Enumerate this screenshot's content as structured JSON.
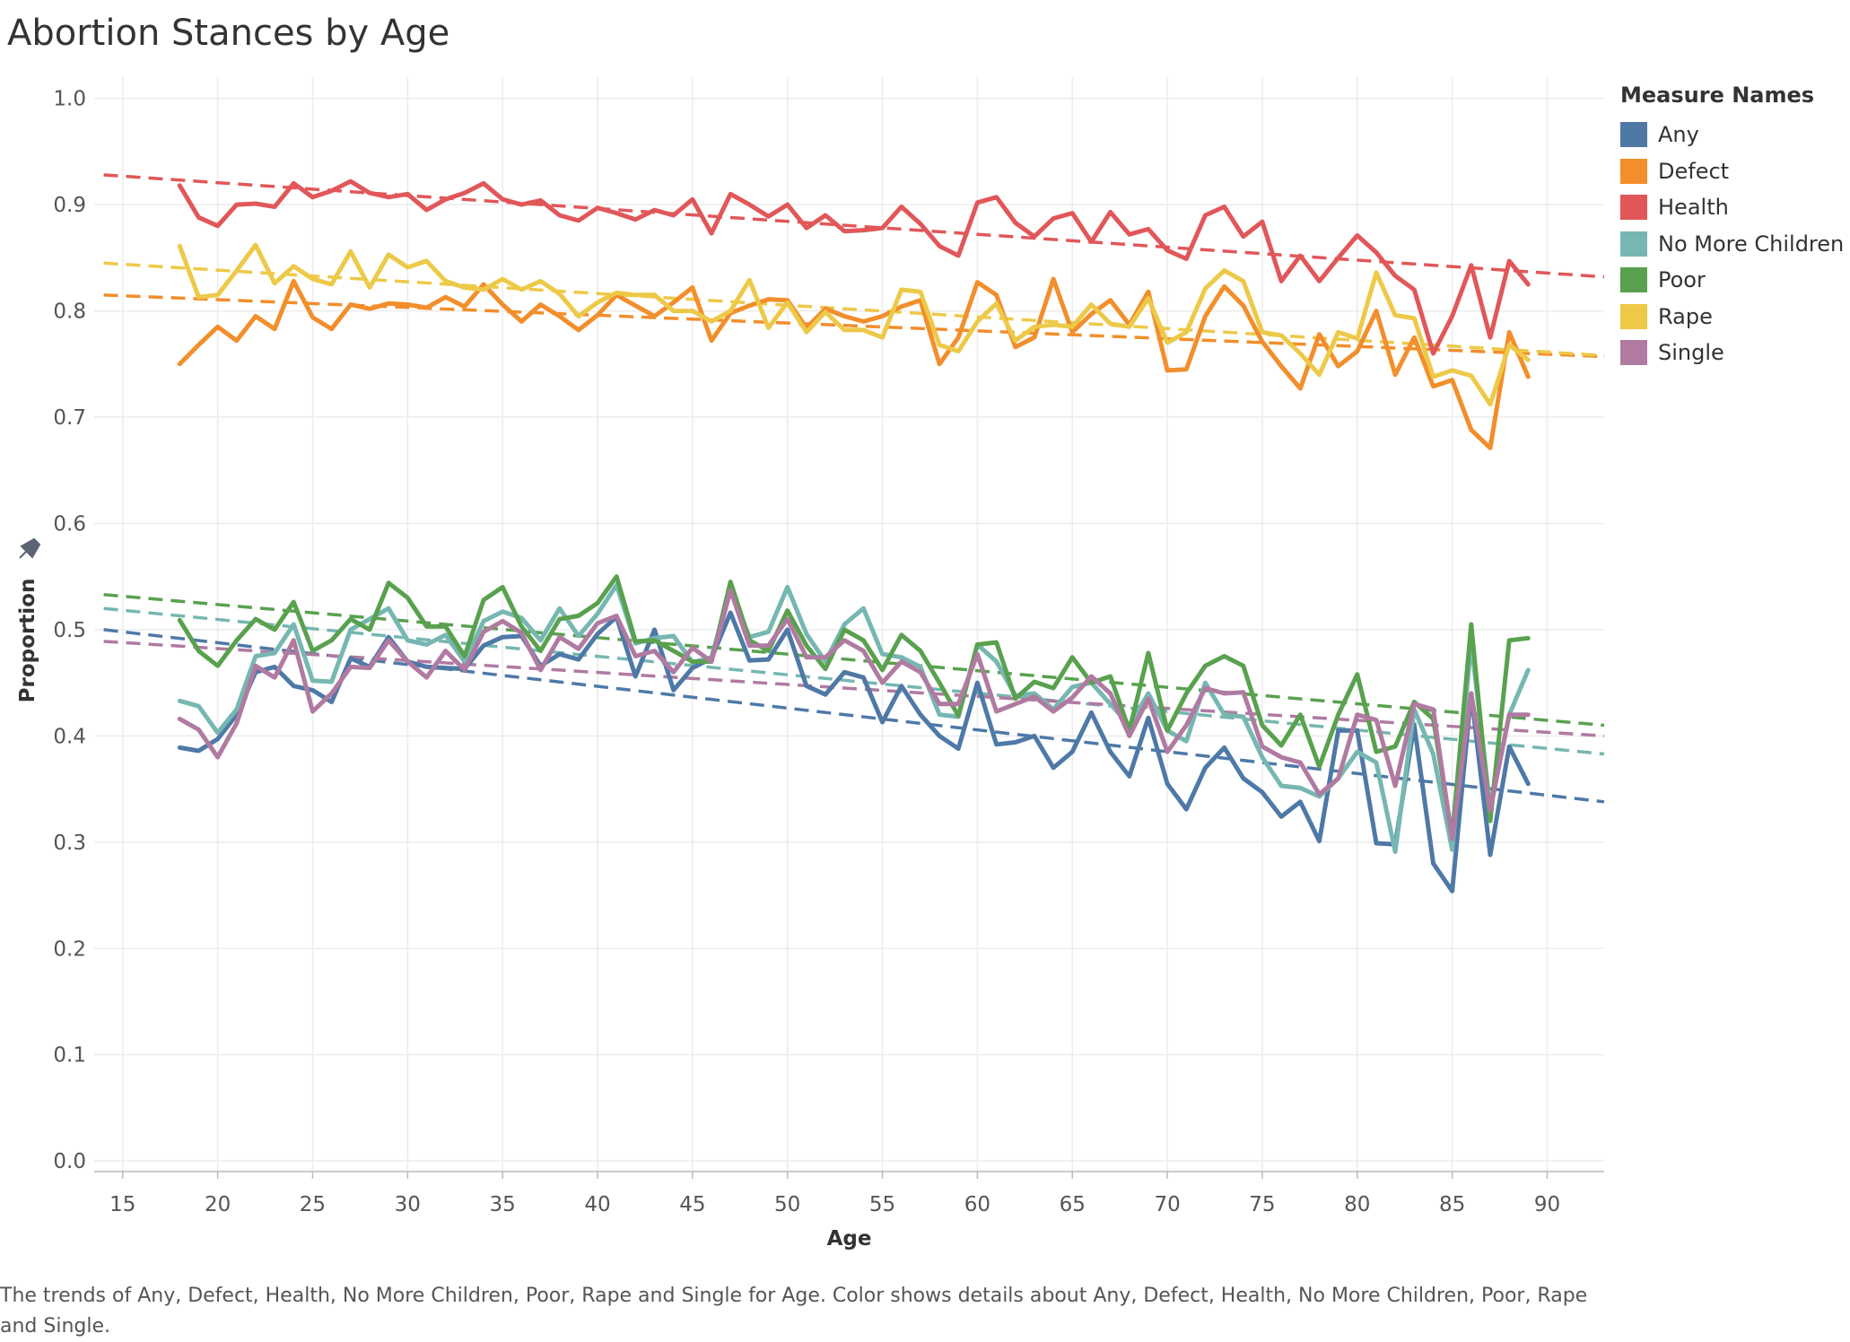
{
  "title": "Abortion Stances by Age",
  "legend_title": "Measure Names",
  "caption": "The trends of Any, Defect, Health, No More Children, Poor, Rape and Single for Age.  Color shows details about Any, Defect, Health, No More Children, Poor, Rape and Single.",
  "chart_data": {
    "type": "line",
    "xlabel": "Age",
    "ylabel": "Proportion",
    "xlim": [
      13.5,
      93
    ],
    "ylim": [
      -0.01,
      1.02
    ],
    "x_ticks": [
      15,
      20,
      25,
      30,
      35,
      40,
      45,
      50,
      55,
      60,
      65,
      70,
      75,
      80,
      85,
      90
    ],
    "y_ticks": [
      0.0,
      0.1,
      0.2,
      0.3,
      0.4,
      0.5,
      0.6,
      0.7,
      0.8,
      0.9,
      1.0
    ],
    "grid": true,
    "legend_position": "right",
    "x": [
      18,
      19,
      20,
      21,
      22,
      23,
      24,
      25,
      26,
      27,
      28,
      29,
      30,
      31,
      32,
      33,
      34,
      35,
      36,
      37,
      38,
      39,
      40,
      41,
      42,
      43,
      44,
      45,
      46,
      47,
      48,
      49,
      50,
      51,
      52,
      53,
      54,
      55,
      56,
      57,
      58,
      59,
      60,
      61,
      62,
      63,
      64,
      65,
      66,
      67,
      68,
      69,
      70,
      71,
      72,
      73,
      74,
      75,
      76,
      77,
      78,
      79,
      80,
      81,
      82,
      83,
      84,
      85,
      86,
      87,
      88,
      89
    ],
    "series": [
      {
        "name": "Any",
        "color": "#4e79a7",
        "trend": [
          [
            14,
            0.5
          ],
          [
            93,
            0.338
          ]
        ],
        "values": [
          0.389,
          0.386,
          0.397,
          0.42,
          0.46,
          0.465,
          0.447,
          0.443,
          0.432,
          0.473,
          0.465,
          0.493,
          0.47,
          0.465,
          0.464,
          0.463,
          0.485,
          0.493,
          0.494,
          0.466,
          0.477,
          0.472,
          0.496,
          0.512,
          0.456,
          0.5,
          0.443,
          0.464,
          0.473,
          0.516,
          0.471,
          0.472,
          0.5,
          0.447,
          0.439,
          0.46,
          0.455,
          0.413,
          0.447,
          0.42,
          0.4,
          0.388,
          0.45,
          0.392,
          0.394,
          0.4,
          0.37,
          0.385,
          0.422,
          0.385,
          0.362,
          0.417,
          0.355,
          0.331,
          0.37,
          0.389,
          0.36,
          0.347,
          0.324,
          0.338,
          0.301,
          0.405,
          0.405,
          0.299,
          0.298,
          0.41,
          0.28,
          0.254,
          0.44,
          0.288,
          0.39,
          0.355
        ]
      },
      {
        "name": "Defect",
        "color": "#f28e2b",
        "trend": [
          [
            14,
            0.815
          ],
          [
            93,
            0.757
          ]
        ],
        "values": [
          0.75,
          0.768,
          0.785,
          0.772,
          0.795,
          0.783,
          0.828,
          0.794,
          0.783,
          0.806,
          0.802,
          0.807,
          0.806,
          0.803,
          0.813,
          0.804,
          0.825,
          0.806,
          0.79,
          0.806,
          0.795,
          0.782,
          0.796,
          0.815,
          0.805,
          0.795,
          0.808,
          0.822,
          0.772,
          0.798,
          0.805,
          0.811,
          0.81,
          0.784,
          0.802,
          0.795,
          0.79,
          0.795,
          0.804,
          0.81,
          0.75,
          0.775,
          0.827,
          0.815,
          0.766,
          0.775,
          0.83,
          0.78,
          0.797,
          0.81,
          0.787,
          0.818,
          0.744,
          0.745,
          0.795,
          0.823,
          0.805,
          0.771,
          0.748,
          0.727,
          0.778,
          0.748,
          0.762,
          0.8,
          0.74,
          0.775,
          0.729,
          0.735,
          0.688,
          0.671,
          0.78,
          0.738
        ]
      },
      {
        "name": "Health",
        "color": "#e15759",
        "trend": [
          [
            14,
            0.928
          ],
          [
            93,
            0.832
          ]
        ],
        "values": [
          0.918,
          0.888,
          0.88,
          0.9,
          0.901,
          0.898,
          0.92,
          0.907,
          0.913,
          0.922,
          0.911,
          0.907,
          0.91,
          0.895,
          0.905,
          0.911,
          0.92,
          0.905,
          0.9,
          0.904,
          0.89,
          0.885,
          0.897,
          0.892,
          0.886,
          0.895,
          0.89,
          0.905,
          0.873,
          0.91,
          0.9,
          0.889,
          0.9,
          0.878,
          0.89,
          0.875,
          0.876,
          0.878,
          0.898,
          0.882,
          0.861,
          0.852,
          0.902,
          0.907,
          0.883,
          0.87,
          0.887,
          0.892,
          0.865,
          0.893,
          0.872,
          0.877,
          0.857,
          0.849,
          0.89,
          0.898,
          0.87,
          0.884,
          0.828,
          0.852,
          0.828,
          0.85,
          0.871,
          0.855,
          0.833,
          0.82,
          0.76,
          0.795,
          0.843,
          0.775,
          0.847,
          0.825
        ]
      },
      {
        "name": "No More Children",
        "color": "#76b7b2",
        "trend": [
          [
            14,
            0.52
          ],
          [
            93,
            0.383
          ]
        ],
        "values": [
          0.433,
          0.428,
          0.403,
          0.425,
          0.475,
          0.478,
          0.505,
          0.452,
          0.451,
          0.5,
          0.51,
          0.52,
          0.49,
          0.486,
          0.495,
          0.47,
          0.508,
          0.517,
          0.511,
          0.49,
          0.52,
          0.494,
          0.515,
          0.542,
          0.487,
          0.492,
          0.494,
          0.469,
          0.474,
          0.537,
          0.493,
          0.498,
          0.54,
          0.496,
          0.47,
          0.505,
          0.52,
          0.477,
          0.474,
          0.465,
          0.42,
          0.418,
          0.486,
          0.47,
          0.438,
          0.44,
          0.425,
          0.446,
          0.45,
          0.43,
          0.41,
          0.44,
          0.405,
          0.395,
          0.45,
          0.42,
          0.418,
          0.38,
          0.353,
          0.351,
          0.343,
          0.36,
          0.385,
          0.375,
          0.291,
          0.425,
          0.383,
          0.293,
          0.488,
          0.332,
          0.42,
          0.462
        ]
      },
      {
        "name": "Poor",
        "color": "#59a14f",
        "trend": [
          [
            14,
            0.533
          ],
          [
            93,
            0.41
          ]
        ],
        "values": [
          0.509,
          0.48,
          0.466,
          0.49,
          0.51,
          0.5,
          0.526,
          0.48,
          0.49,
          0.51,
          0.5,
          0.544,
          0.53,
          0.503,
          0.503,
          0.475,
          0.528,
          0.54,
          0.503,
          0.48,
          0.51,
          0.513,
          0.525,
          0.55,
          0.489,
          0.49,
          0.48,
          0.47,
          0.47,
          0.545,
          0.49,
          0.48,
          0.518,
          0.485,
          0.463,
          0.5,
          0.49,
          0.462,
          0.495,
          0.48,
          0.45,
          0.419,
          0.486,
          0.488,
          0.435,
          0.451,
          0.445,
          0.474,
          0.45,
          0.456,
          0.405,
          0.478,
          0.405,
          0.44,
          0.466,
          0.475,
          0.466,
          0.41,
          0.391,
          0.42,
          0.371,
          0.42,
          0.458,
          0.385,
          0.39,
          0.432,
          0.416,
          0.305,
          0.505,
          0.32,
          0.49,
          0.492
        ]
      },
      {
        "name": "Rape",
        "color": "#edc948",
        "trend": [
          [
            14,
            0.845
          ],
          [
            93,
            0.758
          ]
        ],
        "values": [
          0.861,
          0.813,
          0.815,
          0.838,
          0.862,
          0.826,
          0.842,
          0.83,
          0.825,
          0.856,
          0.822,
          0.853,
          0.841,
          0.847,
          0.828,
          0.822,
          0.82,
          0.83,
          0.82,
          0.828,
          0.816,
          0.795,
          0.808,
          0.817,
          0.815,
          0.815,
          0.8,
          0.8,
          0.79,
          0.8,
          0.829,
          0.784,
          0.808,
          0.78,
          0.799,
          0.782,
          0.782,
          0.775,
          0.82,
          0.818,
          0.768,
          0.762,
          0.79,
          0.807,
          0.772,
          0.785,
          0.787,
          0.785,
          0.806,
          0.788,
          0.785,
          0.812,
          0.77,
          0.78,
          0.821,
          0.838,
          0.828,
          0.78,
          0.777,
          0.76,
          0.74,
          0.78,
          0.774,
          0.836,
          0.796,
          0.793,
          0.738,
          0.744,
          0.739,
          0.712,
          0.768,
          0.754
        ]
      },
      {
        "name": "Single",
        "color": "#b07aa1",
        "trend": [
          [
            14,
            0.489
          ],
          [
            93,
            0.4
          ]
        ],
        "values": [
          0.416,
          0.406,
          0.38,
          0.412,
          0.466,
          0.455,
          0.49,
          0.423,
          0.44,
          0.465,
          0.464,
          0.49,
          0.47,
          0.455,
          0.48,
          0.462,
          0.498,
          0.508,
          0.497,
          0.462,
          0.493,
          0.482,
          0.506,
          0.513,
          0.475,
          0.48,
          0.46,
          0.483,
          0.47,
          0.537,
          0.485,
          0.485,
          0.51,
          0.474,
          0.474,
          0.49,
          0.48,
          0.45,
          0.47,
          0.46,
          0.43,
          0.43,
          0.477,
          0.423,
          0.43,
          0.437,
          0.423,
          0.436,
          0.456,
          0.44,
          0.4,
          0.435,
          0.385,
          0.41,
          0.445,
          0.44,
          0.441,
          0.39,
          0.38,
          0.375,
          0.345,
          0.36,
          0.42,
          0.415,
          0.353,
          0.43,
          0.425,
          0.303,
          0.44,
          0.33,
          0.42,
          0.42
        ]
      }
    ]
  }
}
